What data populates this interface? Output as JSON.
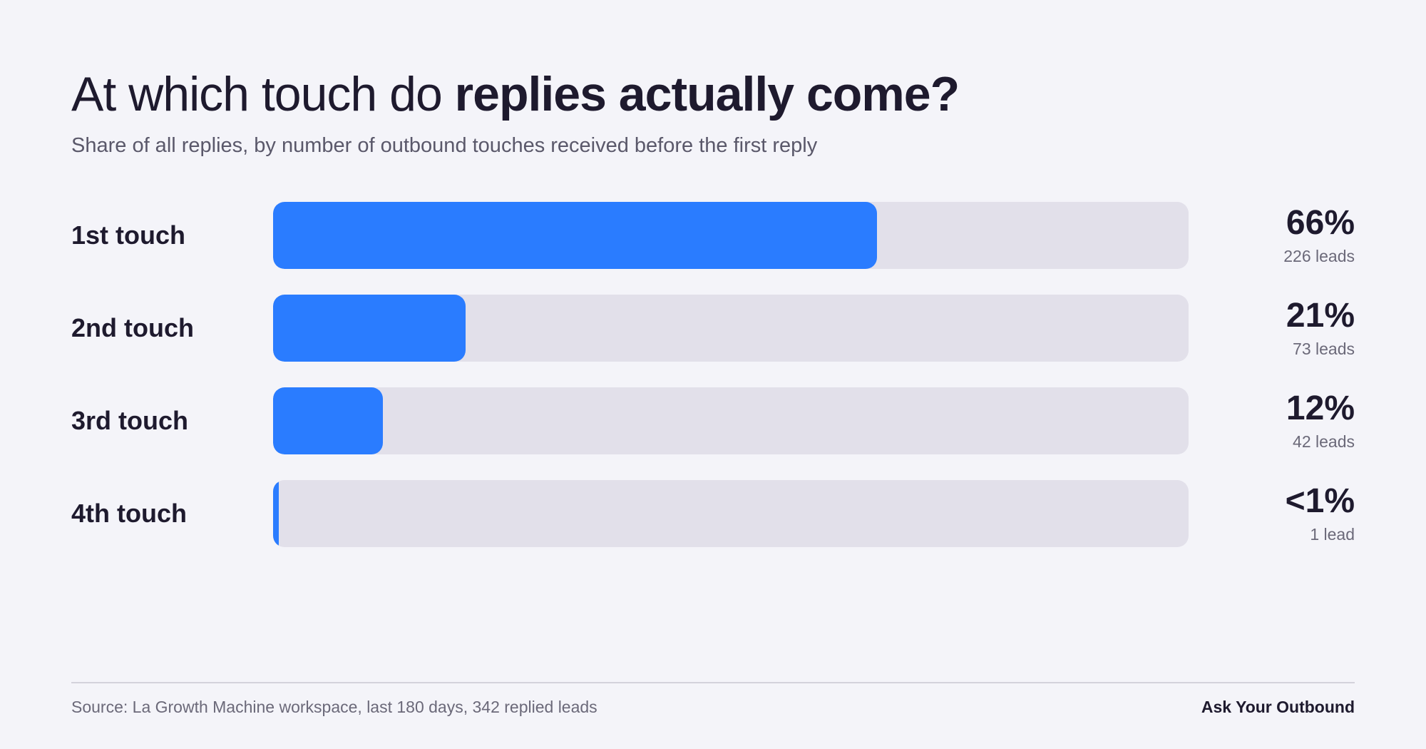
{
  "title": {
    "regular": "At which touch do",
    "bold": "replies actually come?"
  },
  "subtitle": "Share of all replies, by number of outbound touches received before the first reply",
  "colors": {
    "background": "#f4f4f9",
    "bar_fill": "#2a7cff",
    "bar_track": "#e2e0ea",
    "text_dark": "#1e1a2e",
    "text_muted": "#6b6979"
  },
  "chart_data": {
    "type": "bar",
    "orientation": "horizontal",
    "title": "At which touch do replies actually come?",
    "subtitle": "Share of all replies, by number of outbound touches received before the first reply",
    "categories": [
      "1st touch",
      "2nd touch",
      "3rd touch",
      "4th touch"
    ],
    "values": [
      66,
      21,
      12,
      0.3
    ],
    "value_labels": [
      "66%",
      "21%",
      "12%",
      "<1%"
    ],
    "lead_labels": [
      "226 leads",
      "73 leads",
      "42 leads",
      "1 lead"
    ],
    "xlim": [
      0,
      100
    ],
    "xlabel": "",
    "ylabel": "",
    "grid": false,
    "legend": "none"
  },
  "footer": {
    "source": "Source: La Growth Machine workspace, last 180 days, 342 replied leads",
    "brand": "Ask Your Outbound"
  }
}
